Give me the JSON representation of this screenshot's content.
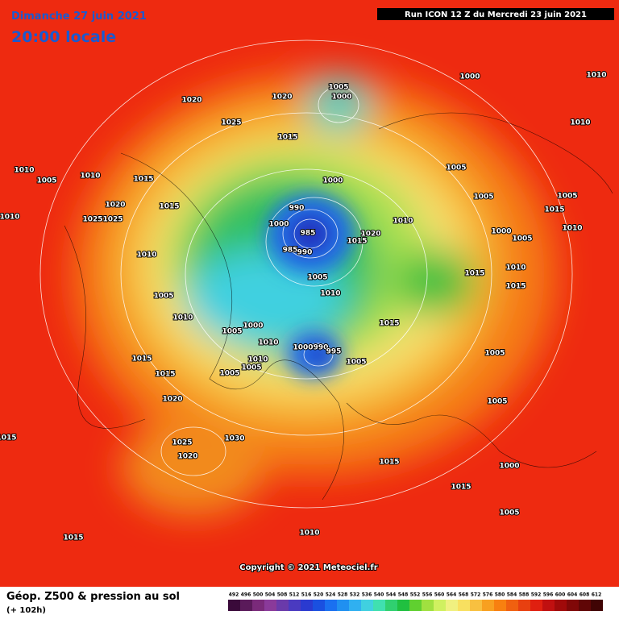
{
  "header": {
    "date": "Dimanche 27 juin 2021",
    "time": "20:00 locale",
    "run": "Run ICON 12 Z du Mercredi 23 juin 2021"
  },
  "footer": {
    "title": "Géop. Z500 & pression au sol",
    "lead": "(+ 102h)",
    "copyright": "Copyright © 2021 Meteociel.fr"
  },
  "isobars": {
    "labels": [
      "1020",
      "1020",
      "1005",
      "1000",
      "1000",
      "1025",
      "1015",
      "1010",
      "1005",
      "1005",
      "1000",
      "1010",
      "1005",
      "1015",
      "1010",
      "990",
      "985",
      "985",
      "990",
      "1000",
      "1010",
      "1020",
      "1015",
      "1010",
      "1005",
      "1010",
      "1015",
      "1005",
      "1010",
      "1005",
      "1000",
      "1015",
      "1000",
      "990",
      "995",
      "1010",
      "1010",
      "1005",
      "1005",
      "1005",
      "1005",
      "1015",
      "1015",
      "1020",
      "1025",
      "1030",
      "1020",
      "1015",
      "1015",
      "1010",
      "1005",
      "1015",
      "1015",
      "1005",
      "1000",
      "1010",
      "1025",
      "1025",
      "1020",
      "1015",
      "1010",
      "1015",
      "1010",
      "1015",
      "1005",
      "1010",
      "1000",
      "1005"
    ]
  },
  "legend": {
    "values": [
      "492",
      "496",
      "500",
      "504",
      "508",
      "512",
      "516",
      "520",
      "524",
      "528",
      "532",
      "536",
      "540",
      "544",
      "548",
      "552",
      "556",
      "560",
      "564",
      "568",
      "572",
      "576",
      "580",
      "584",
      "588",
      "592",
      "596",
      "600",
      "604",
      "608",
      "612"
    ],
    "colors": [
      "#3a0a3a",
      "#5a1a5a",
      "#7a2a7a",
      "#8a3a9a",
      "#6a3aaa",
      "#4a3ac0",
      "#2a3ad0",
      "#1a50e0",
      "#1a70f0",
      "#2090f0",
      "#30b0f0",
      "#40d0e0",
      "#40e0b0",
      "#30d070",
      "#20c040",
      "#60d030",
      "#a0e040",
      "#d0f060",
      "#f0f080",
      "#f8e060",
      "#f8c040",
      "#f8a020",
      "#f88010",
      "#f06010",
      "#e84010",
      "#e02010",
      "#c01010",
      "#a00a0a",
      "#800808",
      "#600606",
      "#400404"
    ]
  }
}
